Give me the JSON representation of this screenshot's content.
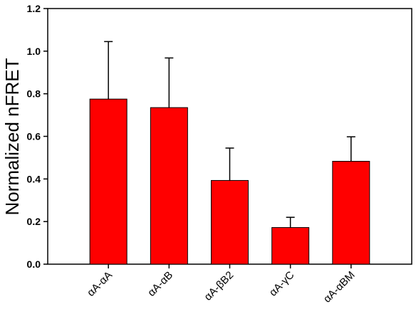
{
  "chart_data": {
    "type": "bar",
    "title": "",
    "xlabel": "",
    "ylabel": "Normalized nFRET",
    "categories": [
      "αA-αA",
      "αA-αB",
      "αA-βB2",
      "αA-γC",
      "αA-αBM"
    ],
    "values": [
      0.775,
      0.735,
      0.393,
      0.172,
      0.483
    ],
    "error_upper": [
      1.045,
      0.968,
      0.545,
      0.22,
      0.598
    ],
    "ylim": [
      0,
      1.2
    ],
    "yticks": [
      "0.0",
      "0.2",
      "0.4",
      "0.6",
      "0.8",
      "1.0",
      "1.2"
    ],
    "bar_color": "#ff0000",
    "grid": false,
    "legend": "none"
  }
}
